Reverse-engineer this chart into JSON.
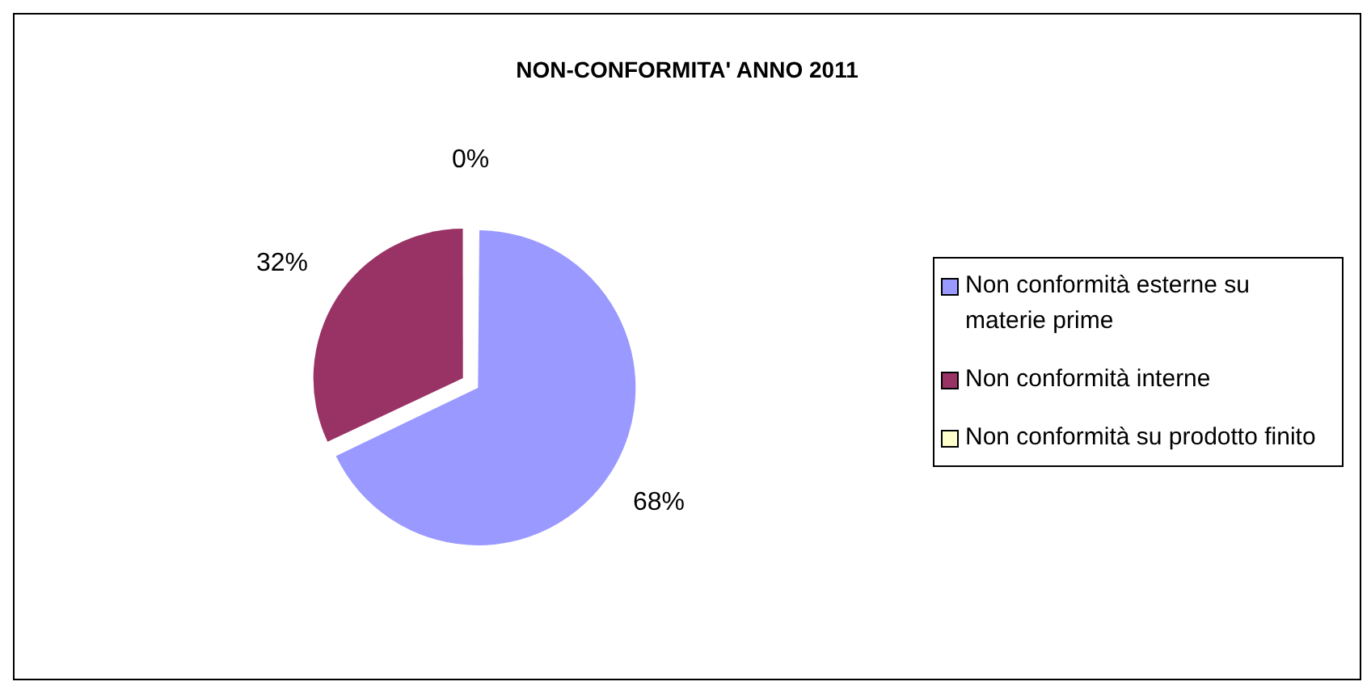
{
  "chart_data": {
    "type": "pie",
    "title": "NON-CONFORMITA' ANNO 2011",
    "categories": [
      "Non conformità esterne su materie prime",
      "Non conformità interne",
      "Non conformità su prodotto finito"
    ],
    "values": [
      68,
      32,
      0
    ],
    "colors": [
      "#9999ff",
      "#993366",
      "#ffffcc"
    ],
    "value_labels": [
      "68%",
      "32%",
      "0%"
    ],
    "legend": "right"
  }
}
